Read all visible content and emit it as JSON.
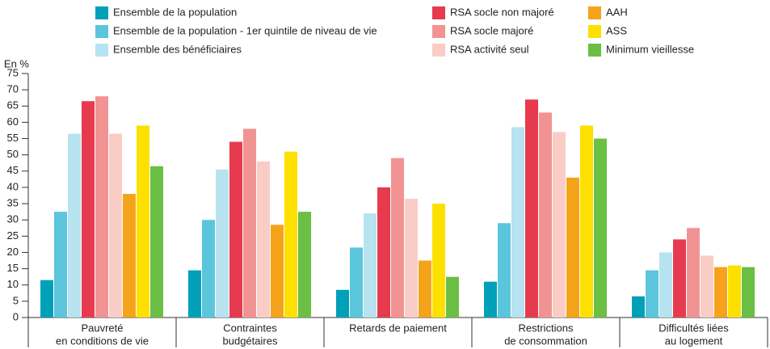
{
  "chart_data": {
    "type": "bar",
    "y_label": "En %",
    "categories": [
      [
        "Pauvreté",
        "en conditions de vie"
      ],
      [
        "Contraintes",
        "budgétaires"
      ],
      [
        "Retards de paiement"
      ],
      [
        "Restrictions",
        "de consommation"
      ],
      [
        "Difficultés liées",
        "au logement"
      ]
    ],
    "series": [
      {
        "name": "Ensemble de la population",
        "color": "#00a0b8",
        "values": [
          11.5,
          14.5,
          8.5,
          11,
          6.5
        ]
      },
      {
        "name": "Ensemble de la population - 1er quintile de niveau de vie",
        "color": "#5bc5dc",
        "values": [
          32.5,
          30,
          21.5,
          29,
          14.5
        ]
      },
      {
        "name": "Ensemble des bénéficiaires",
        "color": "#b6e3ef",
        "values": [
          56.5,
          45.5,
          32,
          58.5,
          20
        ]
      },
      {
        "name": "RSA socle non majoré",
        "color": "#e63b4e",
        "values": [
          66.5,
          54,
          40,
          67,
          24
        ]
      },
      {
        "name": "RSA socle majoré",
        "color": "#f29393",
        "values": [
          68,
          58,
          49,
          63,
          27.5
        ]
      },
      {
        "name": "RSA activité seul",
        "color": "#f9cdc6",
        "values": [
          56.5,
          48,
          36.5,
          57,
          19
        ]
      },
      {
        "name": "AAH",
        "color": "#f5a31a",
        "values": [
          38,
          28.5,
          17.5,
          43,
          15.5
        ]
      },
      {
        "name": "ASS",
        "color": "#fde000",
        "values": [
          59,
          51,
          35,
          59,
          16
        ]
      },
      {
        "name": "Minimum vieillesse",
        "color": "#6abf44",
        "values": [
          46.5,
          32.5,
          12.5,
          55,
          15.5
        ]
      }
    ],
    "ylim": [
      0,
      75
    ],
    "yticks": [
      0,
      5,
      10,
      15,
      20,
      25,
      30,
      35,
      40,
      45,
      50,
      55,
      60,
      65,
      70,
      75
    ],
    "grid": false,
    "legend": "top"
  }
}
